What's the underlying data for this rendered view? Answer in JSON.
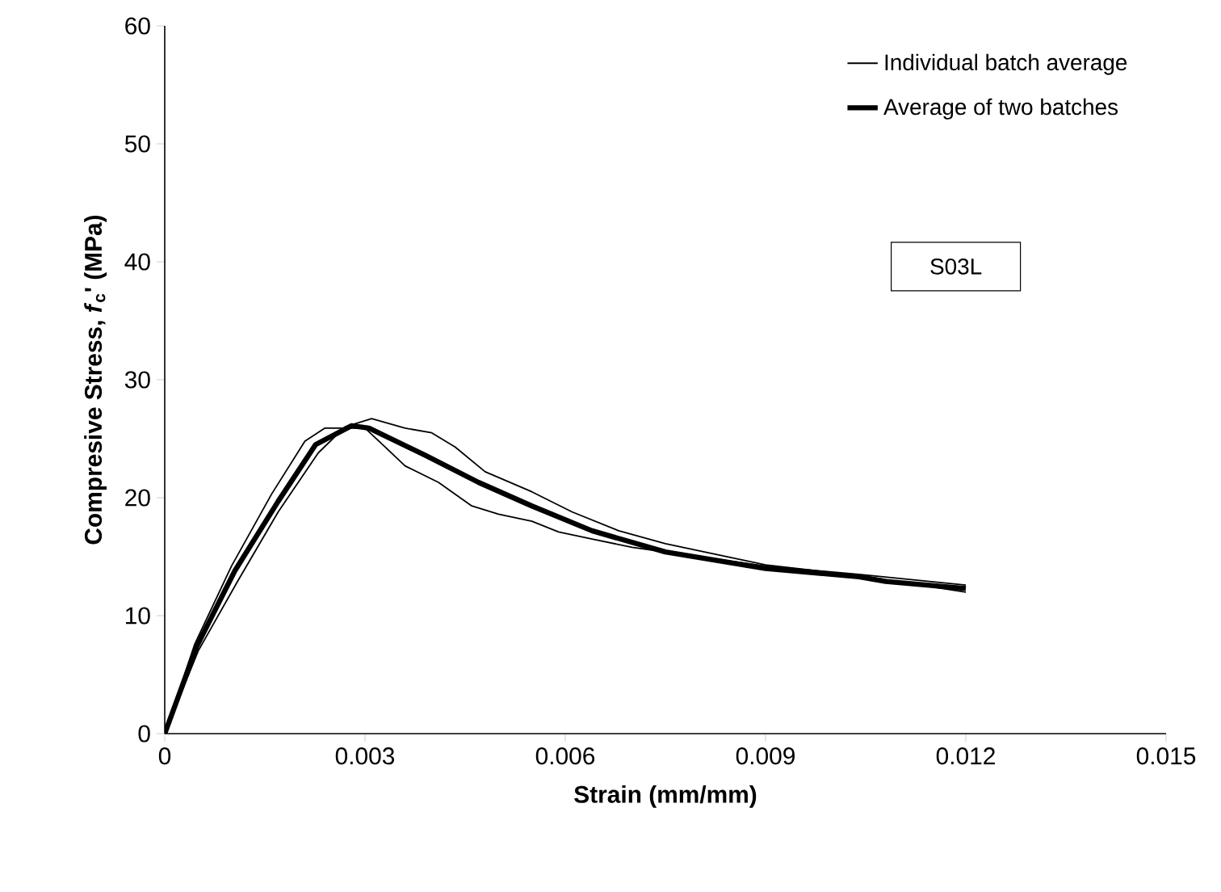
{
  "chart_data": {
    "type": "line",
    "xlabel": "Strain (mm/mm)",
    "ylabel": "Compresive Stress, *f*$_{c}$' (MPa)",
    "xlim": [
      0,
      0.015
    ],
    "ylim": [
      0,
      60
    ],
    "xticks": [
      0,
      0.003,
      0.006,
      0.009,
      0.012,
      0.015
    ],
    "yticks": [
      0,
      10,
      20,
      30,
      40,
      50,
      60
    ],
    "grid": false,
    "legend": "top right",
    "marker": "none",
    "line_style": "solid",
    "annotations": [
      "S03L"
    ],
    "series": [
      {
        "name": "Individual batch average",
        "color": "#000000",
        "x": [
          0,
          0.00045,
          0.001,
          0.0016,
          0.0021,
          0.0024,
          0.003,
          0.0033,
          0.0036,
          0.0041,
          0.0046,
          0.005,
          0.0055,
          0.0059,
          0.0064,
          0.007,
          0.008,
          0.009,
          0.0104,
          0.012
        ],
        "values": [
          0,
          7.6,
          14.2,
          20.3,
          24.8,
          25.9,
          25.9,
          24.3,
          22.7,
          21.3,
          19.3,
          18.6,
          18.0,
          17.1,
          16.5,
          15.8,
          15.0,
          14.2,
          13.5,
          12.6
        ]
      },
      {
        "color": "#000000",
        "x": [
          0,
          0.0005,
          0.0011,
          0.0017,
          0.0023,
          0.0027,
          0.0031,
          0.0036,
          0.004,
          0.00435,
          0.0048,
          0.0055,
          0.0061,
          0.0068,
          0.0075,
          0.009,
          0.0104,
          0.012
        ],
        "values": [
          0,
          7.0,
          13.0,
          18.8,
          23.8,
          26.0,
          26.7,
          25.9,
          25.5,
          24.3,
          22.2,
          20.5,
          18.8,
          17.2,
          16.1,
          14.3,
          13.4,
          12.0
        ]
      },
      {
        "name": "Average of two batches",
        "color": "#000000",
        "x": [
          0,
          0.00048,
          0.00105,
          0.0017,
          0.00226,
          0.0028,
          0.00306,
          0.0039,
          0.0047,
          0.0055,
          0.0064,
          0.0075,
          0.009,
          0.0104,
          0.0108,
          0.012
        ],
        "values": [
          0,
          7.4,
          13.8,
          19.7,
          24.5,
          26.1,
          25.9,
          23.6,
          21.3,
          19.3,
          17.2,
          15.4,
          14.0,
          13.3,
          12.9,
          12.3
        ]
      }
    ]
  }
}
